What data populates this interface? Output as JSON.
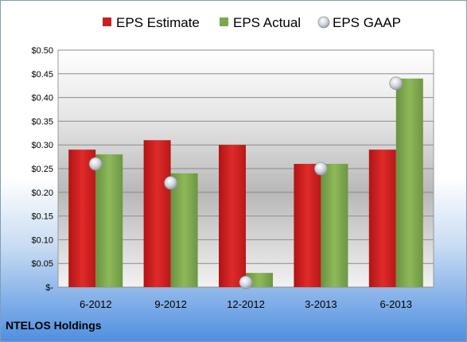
{
  "company": "NTELOS Holdings",
  "colors": {
    "estimate": "#cc1f1f",
    "actual": "#7fa64a",
    "gaap": "#c8ccd4"
  },
  "chart_data": {
    "type": "bar",
    "categories": [
      "6-2012",
      "9-2012",
      "12-2012",
      "3-2013",
      "6-2013"
    ],
    "series": [
      {
        "name": "EPS Estimate",
        "values": [
          0.29,
          0.31,
          0.3,
          0.26,
          0.29
        ]
      },
      {
        "name": "EPS Actual",
        "values": [
          0.28,
          0.24,
          0.03,
          0.26,
          0.44
        ]
      },
      {
        "name": "EPS GAAP",
        "type": "scatter",
        "values": [
          0.26,
          0.22,
          0.01,
          0.25,
          0.43
        ]
      }
    ],
    "yticks": [
      "$-",
      "$0.05",
      "$0.10",
      "$0.15",
      "$0.20",
      "$0.25",
      "$0.30",
      "$0.35",
      "$0.40",
      "$0.45",
      "$0.50"
    ],
    "ylim": [
      0,
      0.5
    ],
    "grid": true,
    "legend": "top"
  }
}
